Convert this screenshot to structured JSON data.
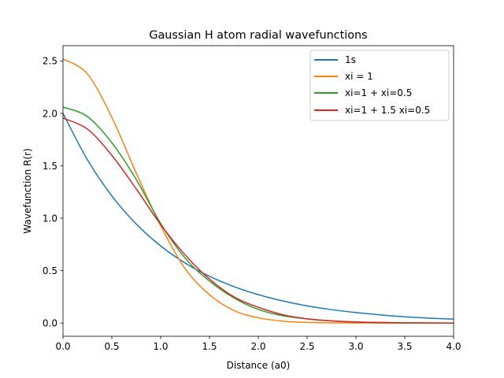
{
  "chart_data": {
    "type": "line",
    "title": "Gaussian H atom radial wavefunctions",
    "xlabel": "Distance (a0)",
    "ylabel": "Wavefunction R(r)",
    "xlim": [
      0.0,
      4.0
    ],
    "ylim": [
      -0.126,
      2.646
    ],
    "xticks": [
      "0.0",
      "0.5",
      "1.0",
      "1.5",
      "2.0",
      "2.5",
      "3.0",
      "3.5",
      "4.0"
    ],
    "yticks": [
      "0.0",
      "0.5",
      "1.0",
      "1.5",
      "2.0",
      "2.5"
    ],
    "grid": false,
    "legend_position": "upper right",
    "x": [
      0.0,
      0.25,
      0.5,
      0.75,
      1.0,
      1.25,
      1.5,
      1.75,
      2.0,
      2.25,
      2.5,
      2.75,
      3.0,
      3.25,
      3.5,
      3.75,
      4.0
    ],
    "series": [
      {
        "name": "1s",
        "color": "#1f77b4",
        "values": [
          2.0,
          1.558,
          1.213,
          0.945,
          0.736,
          0.573,
          0.446,
          0.348,
          0.271,
          0.211,
          0.164,
          0.128,
          0.1,
          0.078,
          0.06,
          0.047,
          0.037
        ]
      },
      {
        "name": "xi = 1",
        "color": "#ff7f0e",
        "values": [
          2.52,
          2.377,
          1.962,
          1.431,
          0.929,
          0.52,
          0.27,
          0.12,
          0.05,
          0.018,
          0.006,
          0.002,
          0.001,
          0.0,
          0.0,
          0.0,
          0.0
        ]
      },
      {
        "name": "xi=1 + xi=0.5",
        "color": "#2ca02c",
        "values": [
          2.06,
          1.97,
          1.72,
          1.37,
          0.95,
          0.62,
          0.4,
          0.24,
          0.13,
          0.07,
          0.04,
          0.02,
          0.01,
          0.005,
          0.002,
          0.001,
          0.0
        ]
      },
      {
        "name": "xi=1 + 1.5 xi=0.5",
        "color": "#d62728",
        "values": [
          1.955,
          1.85,
          1.6,
          1.28,
          0.94,
          0.65,
          0.42,
          0.25,
          0.15,
          0.08,
          0.04,
          0.02,
          0.01,
          0.005,
          0.002,
          0.001,
          0.0
        ]
      }
    ]
  }
}
